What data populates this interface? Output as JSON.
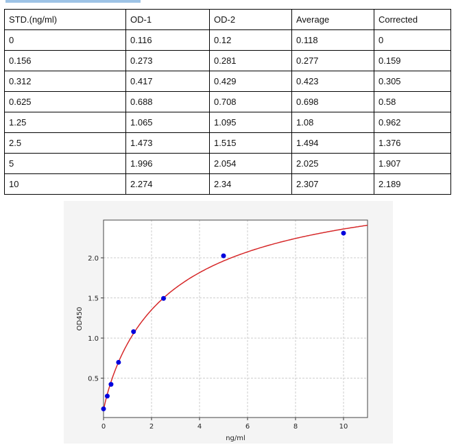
{
  "table": {
    "headers": [
      "STD.(ng/ml)",
      "OD-1",
      "OD-2",
      "Average",
      "Corrected"
    ],
    "rows": [
      [
        "0",
        "0.116",
        "0.12",
        "0.118",
        "0"
      ],
      [
        "0.156",
        "0.273",
        "0.281",
        "0.277",
        "0.159"
      ],
      [
        "0.312",
        "0.417",
        "0.429",
        "0.423",
        "0.305"
      ],
      [
        "0.625",
        "0.688",
        "0.708",
        "0.698",
        "0.58"
      ],
      [
        "1.25",
        "1.065",
        "1.095",
        "1.08",
        "0.962"
      ],
      [
        "2.5",
        "1.473",
        "1.515",
        "1.494",
        "1.376"
      ],
      [
        "5",
        "1.996",
        "2.054",
        "2.025",
        "1.907"
      ],
      [
        "10",
        "2.274",
        "2.34",
        "2.307",
        "2.189"
      ]
    ]
  },
  "chart_data": {
    "type": "scatter",
    "title": "",
    "xlabel": "ng/ml",
    "ylabel": "OD450",
    "xlim": [
      0,
      11
    ],
    "ylim": [
      0.01,
      2.47
    ],
    "xticks": [
      "0",
      "2",
      "4",
      "6",
      "8",
      "10"
    ],
    "yticks": [
      "0.5",
      "1.0",
      "1.5",
      "2.0"
    ],
    "grid": true,
    "points": {
      "x": [
        0,
        0.156,
        0.312,
        0.625,
        1.25,
        2.5,
        5,
        10
      ],
      "y": [
        0.118,
        0.277,
        0.423,
        0.698,
        1.08,
        1.494,
        2.025,
        2.307
      ],
      "color": "#0000dd"
    },
    "fit_curve": {
      "model": "4PL",
      "a": 0.1,
      "b": 0.9,
      "c": 2.9,
      "d": 3.1,
      "color": "#d62728"
    }
  }
}
